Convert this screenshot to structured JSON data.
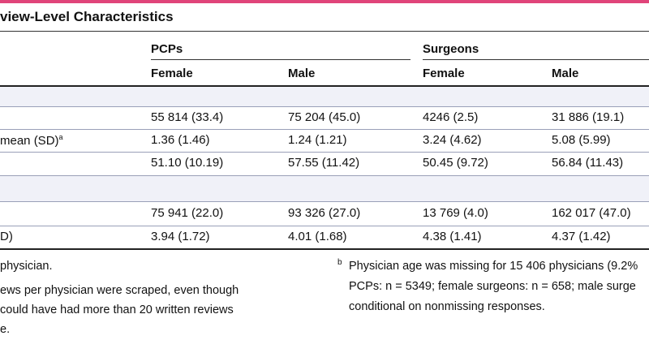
{
  "title": "view-Level Characteristics",
  "groups": {
    "pcps": "PCPs",
    "surgeons": "Surgeons"
  },
  "columns": {
    "pcp_female": "Female",
    "pcp_male": "Male",
    "surg_female": "Female",
    "surg_male": "Male"
  },
  "rows": [
    {
      "label": "",
      "cells": [
        "55 814 (33.4)",
        "75 204 (45.0)",
        "4246 (2.5)",
        "31 886 (19.1)"
      ]
    },
    {
      "label": "mean (SD)",
      "label_sup": "a",
      "cells": [
        "1.36 (1.46)",
        "1.24 (1.21)",
        "3.24 (4.62)",
        "5.08 (5.99)"
      ]
    },
    {
      "label": "",
      "cells": [
        "51.10 (10.19)",
        "57.55 (11.42)",
        "50.45 (9.72)",
        "56.84 (11.43)"
      ]
    },
    {
      "label": "",
      "cells": [
        "75 941 (22.0)",
        "93 326 (27.0)",
        "13 769 (4.0)",
        "162 017 (47.0)"
      ]
    },
    {
      "label": "D)",
      "cells": [
        "3.94 (1.72)",
        "4.01 (1.68)",
        "4.38 (1.41)",
        "4.37 (1.42)"
      ]
    }
  ],
  "footnotes": {
    "left": [
      "physician.",
      "ews per physician were scraped, even though",
      " could have had more than 20 written reviews",
      "e."
    ],
    "right_marker": "b",
    "right": [
      "Physician age was missing for 15 406 physicians (9.2%",
      "PCPs: n = 5349; female surgeons: n = 658; male surge",
      "conditional on nonmissing responses."
    ]
  }
}
